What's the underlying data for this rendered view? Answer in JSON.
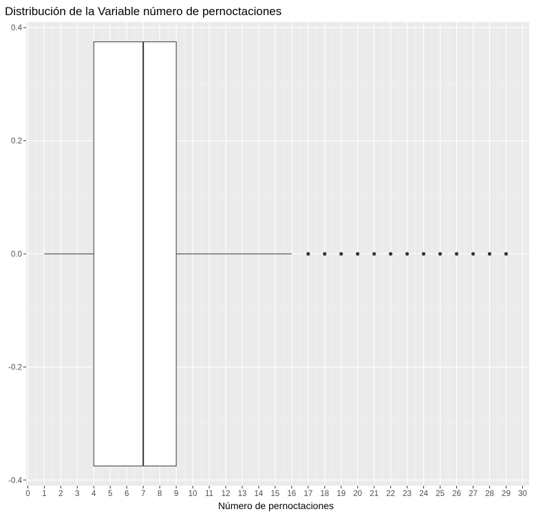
{
  "chart_data": {
    "type": "boxplot",
    "title": "Distribución de la Variable número de pernoctaciones",
    "xlabel": "Número de pernoctaciones",
    "ylabel": "",
    "xlim": [
      -0.1,
      30.4
    ],
    "ylim": [
      -0.41,
      0.41
    ],
    "x_ticks": [
      0,
      1,
      2,
      3,
      4,
      5,
      6,
      7,
      8,
      9,
      10,
      11,
      12,
      13,
      14,
      15,
      16,
      17,
      18,
      19,
      20,
      21,
      22,
      23,
      24,
      25,
      26,
      27,
      28,
      29,
      30
    ],
    "y_ticks": [
      -0.4,
      -0.2,
      0.0,
      0.2,
      0.4
    ],
    "y_tick_labels": [
      "-0.4",
      "-0.2",
      "0.0",
      "0.2",
      "0.4"
    ],
    "grid": true,
    "colors": {
      "panel": "#ebebeb",
      "grid_major": "#ffffff",
      "grid_minor": "#f5f5f5",
      "box_fill": "#ffffff",
      "box_line": "#333333",
      "outlier": "#333333"
    },
    "box": {
      "y_center": 0.0,
      "half_height": 0.375,
      "whisker_low": 1,
      "q1": 4,
      "median": 7,
      "q3": 9,
      "whisker_high": 16
    },
    "outliers": [
      17,
      18,
      19,
      20,
      21,
      22,
      23,
      24,
      25,
      26,
      27,
      28,
      29
    ]
  }
}
